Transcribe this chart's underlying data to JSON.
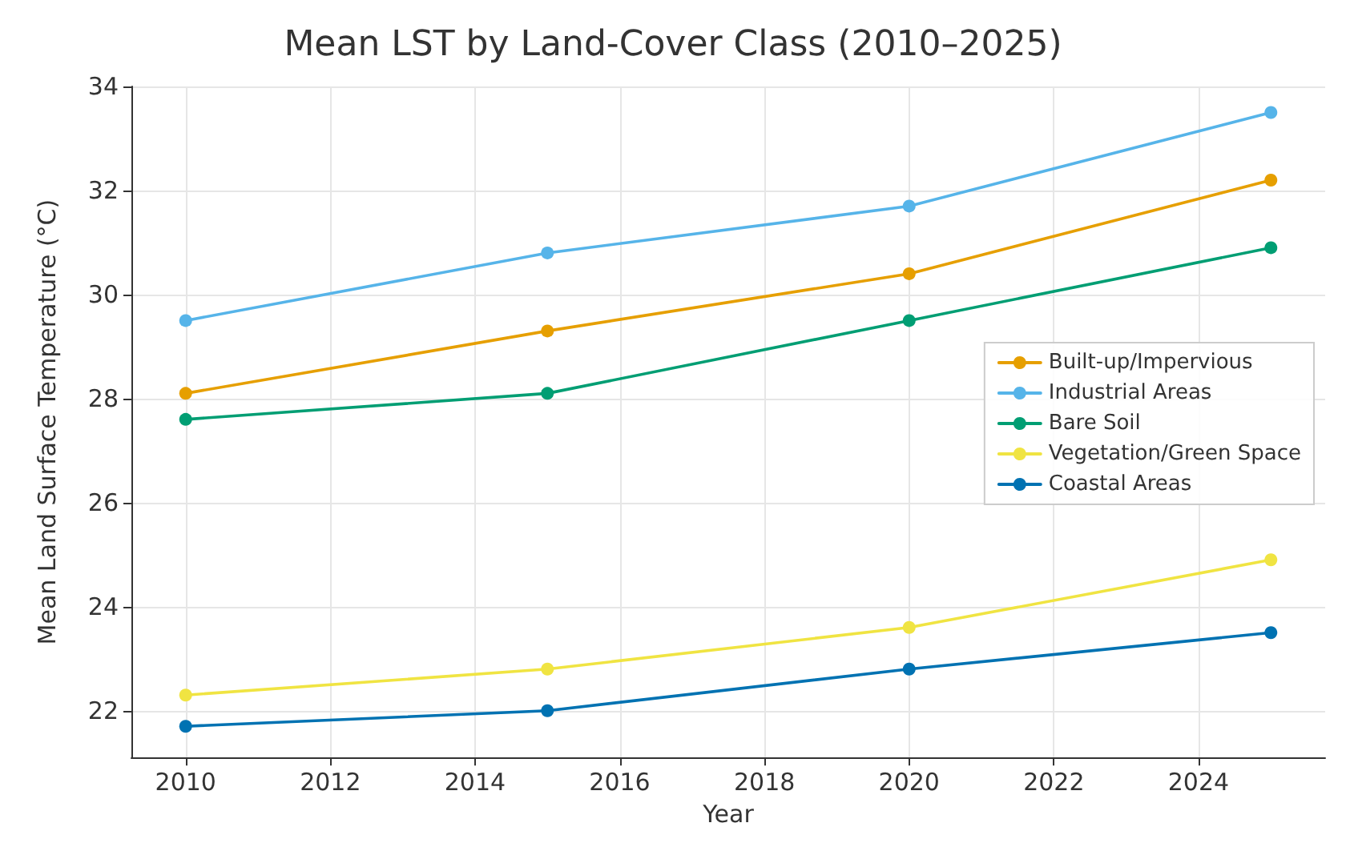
{
  "chart_data": {
    "type": "line",
    "title": "Mean LST by Land-Cover Class (2010–2025)",
    "xlabel": "Year",
    "ylabel": "Mean Land Surface Temperature (°C)",
    "x": [
      2010,
      2015,
      2020,
      2025
    ],
    "series": [
      {
        "name": "Built-up/Impervious",
        "color": "#e69f00",
        "values": [
          28.1,
          29.3,
          30.4,
          32.2
        ]
      },
      {
        "name": "Industrial Areas",
        "color": "#56b4e9",
        "values": [
          29.5,
          30.8,
          31.7,
          33.5
        ]
      },
      {
        "name": "Bare Soil",
        "color": "#009e73",
        "values": [
          27.6,
          28.1,
          29.5,
          30.9
        ]
      },
      {
        "name": "Vegetation/Green Space",
        "color": "#f0e442",
        "values": [
          22.3,
          22.8,
          23.6,
          24.9
        ]
      },
      {
        "name": "Coastal Areas",
        "color": "#0072b2",
        "values": [
          21.7,
          22.0,
          22.8,
          23.5
        ]
      }
    ],
    "xlim": [
      2009.25,
      2025.75
    ],
    "xticks": [
      2010,
      2012,
      2014,
      2016,
      2018,
      2020,
      2022,
      2024
    ],
    "ylim": [
      21.1,
      34
    ],
    "yticks": [
      22,
      24,
      26,
      28,
      30,
      32,
      34
    ],
    "grid": true,
    "legend": "center right",
    "marker": "circle",
    "line_style": "solid"
  }
}
